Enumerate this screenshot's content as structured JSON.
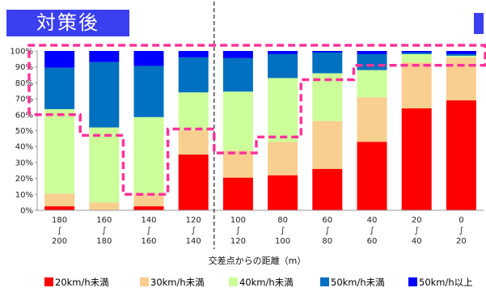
{
  "header": {
    "title": "対策後"
  },
  "chart_data": {
    "type": "bar",
    "stacked": true,
    "stack_order_bottom_to_top": [
      "20km/h未満",
      "30km/h未満",
      "40km/h未満",
      "50km/h未満",
      "50km/h以上"
    ],
    "categories": [
      [
        "180",
        "∫",
        "200"
      ],
      [
        "160",
        "∫",
        "180"
      ],
      [
        "140",
        "∫",
        "160"
      ],
      [
        "120",
        "∫",
        "140"
      ],
      [
        "100",
        "∫",
        "120"
      ],
      [
        "80",
        "∫",
        "100"
      ],
      [
        "60",
        "∫",
        "80"
      ],
      [
        "40",
        "∫",
        "60"
      ],
      [
        "20",
        "∫",
        "40"
      ],
      [
        "0",
        "∫",
        "20"
      ]
    ],
    "series": [
      {
        "name": "20km/h未満",
        "color": "#ff0000",
        "values": [
          2.5,
          0,
          2.5,
          35,
          20.5,
          22,
          26,
          43,
          64,
          69
        ]
      },
      {
        "name": "30km/h未満",
        "color": "#f9cf8f",
        "values": [
          8,
          5,
          8,
          15,
          17,
          21,
          30,
          28,
          29,
          27
        ]
      },
      {
        "name": "40km/h未満",
        "color": "#ccff99",
        "values": [
          53,
          47,
          48,
          24,
          37,
          40,
          30,
          17,
          5,
          1
        ]
      },
      {
        "name": "50km/h未満",
        "color": "#0070c0",
        "values": [
          26,
          41,
          32,
          22,
          21,
          15,
          13,
          10,
          1,
          1
        ]
      },
      {
        "name": "50km/h以上",
        "color": "#0000ff",
        "values": [
          10.5,
          7,
          9.5,
          4,
          4.5,
          2,
          1,
          2,
          1,
          2
        ]
      }
    ],
    "y_ticks": [
      "0%",
      "10%",
      "20%",
      "30%",
      "40%",
      "50%",
      "60%",
      "70%",
      "80%",
      "90%",
      "100%"
    ],
    "ylim": [
      0,
      100
    ],
    "xlabel": "交差点からの距離（m）",
    "ylabel": "",
    "legend_position": "bottom",
    "grid": false,
    "annotations": {
      "pink_dashed_outline": {
        "color": "#ff3399",
        "description_levels_pct": [
          60,
          47,
          10,
          51,
          36,
          46,
          82,
          91
        ]
      },
      "vertical_dashed_divider_after_category": "120∫140"
    }
  }
}
